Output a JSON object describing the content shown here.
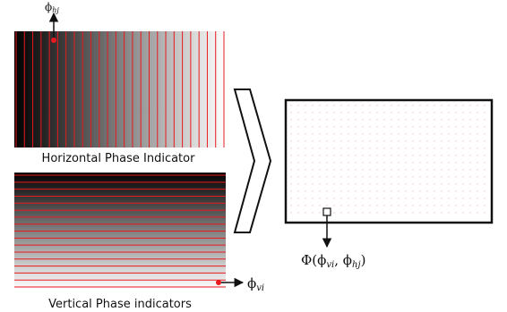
{
  "horizontal_panel": {
    "caption": "Horizontal Phase Indicator",
    "phi_label": "ϕ",
    "phi_sub": "hj",
    "gradient": "dark-left-to-light-right",
    "line_color": "#e8191f",
    "line_count": 26
  },
  "vertical_panel": {
    "caption": "Vertical Phase indicators",
    "phi_label": "ϕ",
    "phi_sub": "vi",
    "gradient": "dark-top-to-light-bottom",
    "line_color": "#e8191f",
    "line_count": 17
  },
  "output_panel": {
    "formula_prefix": "Φ(",
    "formula_phi1": "ϕ",
    "formula_sub1": "vi",
    "formula_sep": ", ",
    "formula_phi2": "ϕ",
    "formula_sub2": "hj",
    "formula_suffix": ")",
    "dot_color": "#f0a8ad"
  },
  "colors": {
    "accent_red": "#e8191f",
    "stroke": "#111111"
  }
}
